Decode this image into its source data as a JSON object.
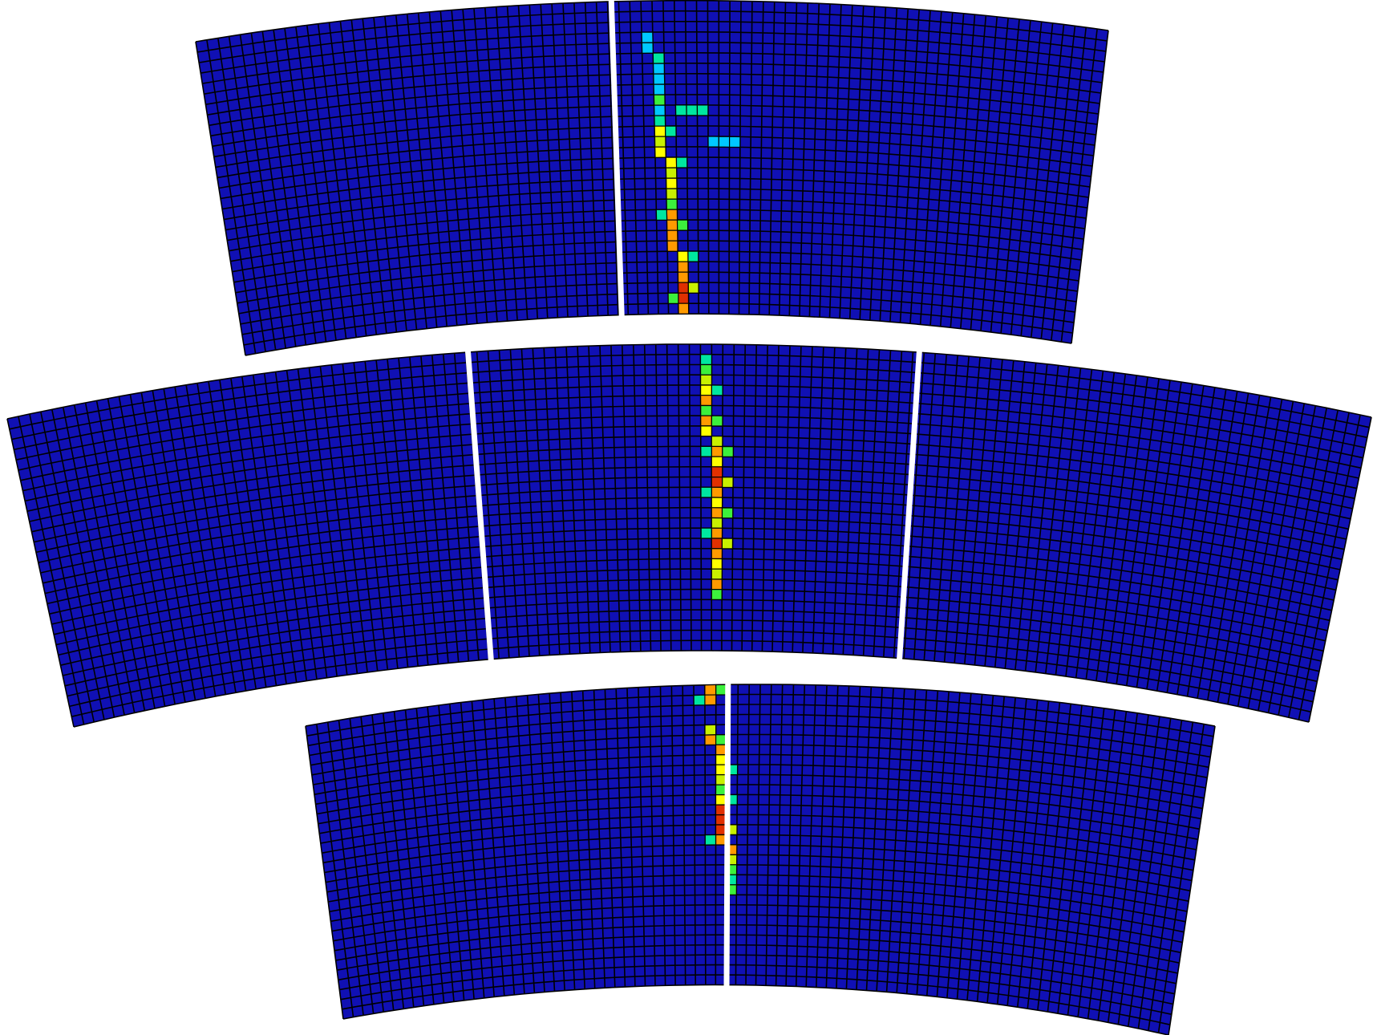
{
  "palette": {
    "background": "#ffffff",
    "cell_empty": "#1010b4",
    "grid_line": "#000000",
    "gap": "#ffffff",
    "hit_scale": [
      "#1e3cff",
      "#00c8ff",
      "#00e6a0",
      "#3cf03c",
      "#c8f000",
      "#ffff00",
      "#ff9a00",
      "#e03000"
    ]
  },
  "layers": [
    {
      "name": "top-layer",
      "modules": [
        "left-module",
        "right-module"
      ],
      "track_hits": [
        [
          4,
          1
        ],
        [
          5,
          1
        ],
        [
          6,
          2
        ],
        [
          7,
          1
        ],
        [
          8,
          1
        ],
        [
          9,
          1
        ],
        [
          10,
          3
        ],
        [
          11,
          1
        ],
        [
          12,
          2
        ],
        [
          13,
          5
        ],
        [
          14,
          4
        ],
        [
          15,
          5
        ],
        [
          16,
          5
        ],
        [
          17,
          4
        ],
        [
          18,
          5
        ],
        [
          19,
          4
        ],
        [
          20,
          3
        ],
        [
          21,
          6
        ],
        [
          22,
          6
        ],
        [
          23,
          6
        ],
        [
          24,
          6
        ],
        [
          25,
          5
        ],
        [
          26,
          6
        ],
        [
          27,
          6
        ],
        [
          28,
          7
        ],
        [
          29,
          7
        ],
        [
          30,
          6
        ]
      ],
      "branch_hits": [
        {
          "row": 11,
          "cols": [
            3,
            4,
            5
          ],
          "level": 2
        },
        {
          "row": 14,
          "cols": [
            6,
            7,
            8
          ],
          "level": 1
        }
      ]
    },
    {
      "name": "middle-layer",
      "modules": [
        "left-module",
        "center-module",
        "right-module"
      ],
      "track_hits": [
        [
          2,
          2
        ],
        [
          3,
          3
        ],
        [
          4,
          4
        ],
        [
          5,
          5
        ],
        [
          6,
          6
        ],
        [
          7,
          3
        ],
        [
          8,
          6
        ],
        [
          9,
          5
        ],
        [
          10,
          4
        ],
        [
          11,
          6
        ],
        [
          12,
          5
        ],
        [
          13,
          7
        ],
        [
          14,
          7
        ],
        [
          15,
          6
        ],
        [
          16,
          5
        ],
        [
          17,
          6
        ],
        [
          18,
          4
        ],
        [
          19,
          6
        ],
        [
          20,
          7
        ],
        [
          21,
          6
        ],
        [
          22,
          5
        ],
        [
          23,
          4
        ],
        [
          24,
          6
        ],
        [
          25,
          3
        ]
      ]
    },
    {
      "name": "bottom-layer",
      "modules": [
        "left-module",
        "right-module"
      ],
      "track_hits": [
        [
          1,
          6
        ],
        [
          2,
          6
        ],
        [
          5,
          4
        ],
        [
          6,
          6
        ],
        [
          7,
          6
        ],
        [
          8,
          5
        ],
        [
          9,
          5
        ],
        [
          10,
          4
        ],
        [
          11,
          3
        ],
        [
          12,
          5
        ],
        [
          13,
          7
        ],
        [
          14,
          7
        ],
        [
          15,
          7
        ],
        [
          16,
          6
        ],
        [
          17,
          6
        ],
        [
          18,
          4
        ],
        [
          19,
          3
        ],
        [
          20,
          2
        ],
        [
          21,
          3
        ]
      ]
    }
  ]
}
